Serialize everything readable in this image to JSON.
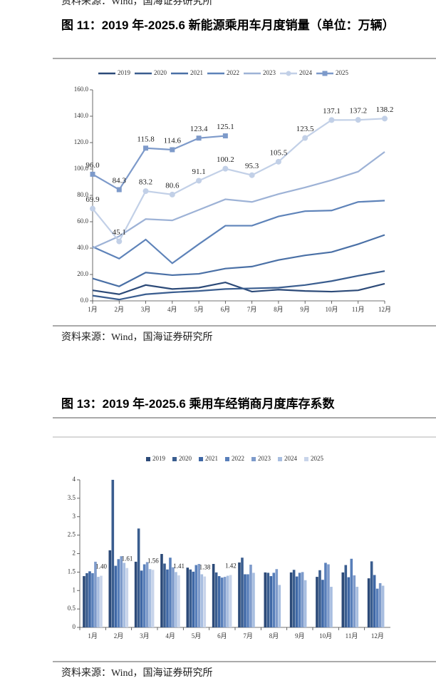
{
  "top_source": "资料来源：Wind，国海证券研究所",
  "sources": [
    "资料来源：Wind，国海证券研究所",
    "资料来源：Wind，国海证券研究所"
  ],
  "chart_data": [
    {
      "type": "line",
      "title": "图 11：2019 年-2025.6 新能源乘用车月度销量（单位：万辆）",
      "categories": [
        "1月",
        "2月",
        "3月",
        "4月",
        "5月",
        "6月",
        "7月",
        "8月",
        "9月",
        "10月",
        "11月",
        "12月"
      ],
      "ylim": [
        0,
        160
      ],
      "yticks": [
        {
          "value": 0,
          "label": "0.0"
        },
        {
          "value": 20,
          "label": "20.0"
        },
        {
          "value": 40,
          "label": "40.0"
        },
        {
          "value": 60,
          "label": "60.0"
        },
        {
          "value": 80,
          "label": "80.0"
        },
        {
          "value": 100,
          "label": "100.0"
        },
        {
          "value": 120,
          "label": "120.0"
        },
        {
          "value": 140,
          "label": "140.0"
        },
        {
          "value": 160,
          "label": "160.0"
        }
      ],
      "series": [
        {
          "name": "2019",
          "color": "#2c4a78",
          "values": [
            8,
            5,
            12,
            9,
            10,
            14,
            7,
            8.5,
            7.5,
            7,
            8,
            13
          ]
        },
        {
          "name": "2020",
          "color": "#3a5d8f",
          "values": [
            4,
            1,
            5,
            6.5,
            7.5,
            9,
            9.5,
            10,
            12,
            15,
            19,
            22.6
          ]
        },
        {
          "name": "2021",
          "color": "#4a70a6",
          "values": [
            17,
            11,
            21.5,
            19.5,
            20.5,
            24.5,
            26,
            31,
            34.5,
            37,
            43,
            50
          ]
        },
        {
          "name": "2022",
          "color": "#5e83b9",
          "values": [
            41,
            32,
            46.5,
            28.5,
            43,
            57,
            57,
            64,
            68,
            68.5,
            75,
            76
          ]
        },
        {
          "name": "2023",
          "color": "#9db2d6",
          "values": [
            40,
            49,
            62,
            61,
            69,
            77,
            75,
            81,
            86,
            91.5,
            98,
            113
          ]
        },
        {
          "name": "2024",
          "color": "#c2d0e7",
          "marker": "circle",
          "values": [
            69.9,
            45.1,
            83.2,
            80.6,
            91.1,
            100.2,
            95.3,
            105.5,
            123.5,
            137.1,
            137.2,
            138.2
          ],
          "value_labels": [
            "69.9",
            "45.1",
            "83.2",
            "80.6",
            "91.1",
            "100.2",
            "95.3",
            "105.5",
            "123.5",
            "137.1",
            "137.2",
            "138.2"
          ]
        },
        {
          "name": "2025",
          "color": "#7d9aca",
          "marker": "square",
          "values": [
            96,
            84.3,
            115.8,
            114.6,
            123.4,
            125.1,
            null,
            null,
            null,
            null,
            null,
            null
          ],
          "value_labels": [
            "96.0",
            "84.3",
            "115.8",
            "114.6",
            "123.4",
            "125.1",
            null,
            null,
            null,
            null,
            null,
            null
          ]
        }
      ]
    },
    {
      "type": "bar",
      "title": "图 13：2019 年-2025.6 乘用车经销商月度库存系数",
      "categories": [
        "1月",
        "2月",
        "3月",
        "4月",
        "5月",
        "6月",
        "7月",
        "8月",
        "9月",
        "10月",
        "11月",
        "12月"
      ],
      "ylim": [
        0,
        4
      ],
      "yticks": [
        0,
        0.5,
        1,
        1.5,
        2,
        2.5,
        3,
        3.5,
        4
      ],
      "series": [
        {
          "name": "2019",
          "color": "#2c4a78",
          "values": [
            1.39,
            2.09,
            1.78,
            1.99,
            1.62,
            1.72,
            1.76,
            1.49,
            1.49,
            1.37,
            1.49,
            1.33
          ]
        },
        {
          "name": "2020",
          "color": "#3a5d8f",
          "values": [
            1.47,
            4.0,
            2.68,
            1.73,
            1.57,
            1.49,
            1.89,
            1.48,
            1.56,
            1.55,
            1.69,
            1.79
          ]
        },
        {
          "name": "2021",
          "color": "#3f68a6",
          "values": [
            1.52,
            1.67,
            1.54,
            1.57,
            1.51,
            1.39,
            1.44,
            1.39,
            1.38,
            1.29,
            1.36,
            1.42
          ]
        },
        {
          "name": "2022",
          "color": "#587fba",
          "values": [
            1.47,
            1.85,
            1.71,
            1.89,
            1.69,
            1.35,
            1.44,
            1.48,
            1.48,
            1.75,
            1.86,
            1.05
          ]
        },
        {
          "name": "2023",
          "color": "#7e9bcb",
          "values": [
            1.78,
            1.93,
            1.77,
            1.63,
            1.72,
            1.37,
            1.7,
            1.58,
            1.5,
            1.71,
            1.41,
            1.2
          ]
        },
        {
          "name": "2024",
          "color": "#a8bee0",
          "values": [
            1.37,
            1.75,
            1.58,
            1.5,
            1.44,
            1.4,
            1.48,
            1.15,
            1.28,
            1.1,
            1.1,
            1.13
          ]
        },
        {
          "name": "2025",
          "color": "#c8d4ea",
          "values": [
            1.4,
            1.61,
            1.56,
            1.41,
            1.38,
            1.42,
            null,
            null,
            null,
            null,
            null,
            null
          ],
          "value_labels": [
            "1.40",
            "1.61",
            "1.56",
            "1.41",
            "1.38",
            "1.42",
            null,
            null,
            null,
            null,
            null,
            null
          ]
        }
      ]
    }
  ]
}
